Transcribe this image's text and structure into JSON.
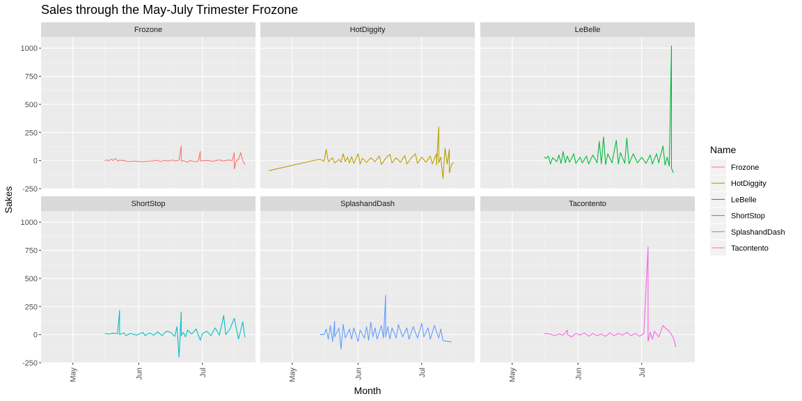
{
  "chart_data": {
    "type": "line",
    "title": "Sales through the May-July Trimester Frozone",
    "xlabel": "Month",
    "ylabel": "Sakes",
    "facet_layout": "2 rows x 3 columns",
    "xlim": [
      "2021-04-16",
      "2021-07-26"
    ],
    "ylim": [
      -250,
      1100
    ],
    "x_ticks": [
      {
        "date": "2021-05-01",
        "label": "May"
      },
      {
        "date": "2021-06-01",
        "label": "Jun"
      },
      {
        "date": "2021-07-01",
        "label": "Jul"
      }
    ],
    "y_ticks": [
      -250,
      0,
      250,
      500,
      750,
      1000
    ],
    "tick_label_orientation_x": "rotated vertical",
    "grid": true,
    "legend": {
      "title": "Name",
      "position": "right"
    },
    "series": [
      {
        "name": "Frozone",
        "color": "#F8766D",
        "points": [
          [
            "2021-05-16",
            0
          ],
          [
            "2021-05-17",
            5
          ],
          [
            "2021-05-18",
            -3
          ],
          [
            "2021-05-19",
            12
          ],
          [
            "2021-05-20",
            0
          ],
          [
            "2021-05-21",
            18
          ],
          [
            "2021-05-22",
            -5
          ],
          [
            "2021-05-23",
            3
          ],
          [
            "2021-05-25",
            0
          ],
          [
            "2021-05-27",
            -8
          ],
          [
            "2021-05-30",
            -4
          ],
          [
            "2021-06-02",
            -10
          ],
          [
            "2021-06-05",
            -6
          ],
          [
            "2021-06-08",
            -2
          ],
          [
            "2021-06-10",
            4
          ],
          [
            "2021-06-11",
            -9
          ],
          [
            "2021-06-13",
            2
          ],
          [
            "2021-06-15",
            -4
          ],
          [
            "2021-06-17",
            6
          ],
          [
            "2021-06-18",
            -3
          ],
          [
            "2021-06-20",
            3
          ],
          [
            "2021-06-21",
            130
          ],
          [
            "2021-06-21",
            -5
          ],
          [
            "2021-06-22",
            0
          ],
          [
            "2021-06-24",
            -15
          ],
          [
            "2021-06-25",
            2
          ],
          [
            "2021-06-27",
            -8
          ],
          [
            "2021-06-29",
            -6
          ],
          [
            "2021-06-30",
            80
          ],
          [
            "2021-06-30",
            -3
          ],
          [
            "2021-07-03",
            2
          ],
          [
            "2021-07-06",
            -6
          ],
          [
            "2021-07-09",
            6
          ],
          [
            "2021-07-11",
            -4
          ],
          [
            "2021-07-13",
            5
          ],
          [
            "2021-07-15",
            0
          ],
          [
            "2021-07-16",
            70
          ],
          [
            "2021-07-16",
            -75
          ],
          [
            "2021-07-17",
            2
          ],
          [
            "2021-07-18",
            8
          ],
          [
            "2021-07-19",
            70
          ],
          [
            "2021-07-20",
            0
          ],
          [
            "2021-07-21",
            -35
          ]
        ]
      },
      {
        "name": "HotDiggity",
        "color": "#B79F00",
        "points": [
          [
            "2021-04-20",
            -90
          ],
          [
            "2021-05-11",
            0
          ],
          [
            "2021-05-14",
            10
          ],
          [
            "2021-05-16",
            -5
          ],
          [
            "2021-05-17",
            100
          ],
          [
            "2021-05-18",
            -10
          ],
          [
            "2021-05-19",
            5
          ],
          [
            "2021-05-20",
            25
          ],
          [
            "2021-05-21",
            -20
          ],
          [
            "2021-05-23",
            10
          ],
          [
            "2021-05-24",
            -15
          ],
          [
            "2021-05-25",
            60
          ],
          [
            "2021-05-26",
            -10
          ],
          [
            "2021-05-27",
            30
          ],
          [
            "2021-05-28",
            -20
          ],
          [
            "2021-05-29",
            35
          ],
          [
            "2021-05-30",
            -25
          ],
          [
            "2021-05-31",
            15
          ],
          [
            "2021-06-01",
            60
          ],
          [
            "2021-06-02",
            -30
          ],
          [
            "2021-06-03",
            20
          ],
          [
            "2021-06-05",
            -15
          ],
          [
            "2021-06-07",
            25
          ],
          [
            "2021-06-09",
            -10
          ],
          [
            "2021-06-11",
            40
          ],
          [
            "2021-06-12",
            -35
          ],
          [
            "2021-06-14",
            20
          ],
          [
            "2021-06-16",
            55
          ],
          [
            "2021-06-17",
            -20
          ],
          [
            "2021-06-19",
            25
          ],
          [
            "2021-06-21",
            -15
          ],
          [
            "2021-06-23",
            45
          ],
          [
            "2021-06-24",
            -30
          ],
          [
            "2021-06-26",
            20
          ],
          [
            "2021-06-28",
            60
          ],
          [
            "2021-06-29",
            -25
          ],
          [
            "2021-07-01",
            30
          ],
          [
            "2021-07-03",
            -15
          ],
          [
            "2021-07-05",
            40
          ],
          [
            "2021-07-06",
            -30
          ],
          [
            "2021-07-07",
            20
          ],
          [
            "2021-07-08",
            60
          ],
          [
            "2021-07-08",
            -40
          ],
          [
            "2021-07-09",
            300
          ],
          [
            "2021-07-09",
            -20
          ],
          [
            "2021-07-10",
            30
          ],
          [
            "2021-07-11",
            -160
          ],
          [
            "2021-07-12",
            110
          ],
          [
            "2021-07-13",
            -30
          ],
          [
            "2021-07-14",
            100
          ],
          [
            "2021-07-14",
            -110
          ],
          [
            "2021-07-15",
            -40
          ],
          [
            "2021-07-16",
            -15
          ]
        ]
      },
      {
        "name": "LeBelle",
        "color": "#00BA38",
        "points": [
          [
            "2021-05-16",
            30
          ],
          [
            "2021-05-17",
            20
          ],
          [
            "2021-05-18",
            40
          ],
          [
            "2021-05-19",
            -30
          ],
          [
            "2021-05-20",
            25
          ],
          [
            "2021-05-22",
            -10
          ],
          [
            "2021-05-23",
            50
          ],
          [
            "2021-05-24",
            -25
          ],
          [
            "2021-05-25",
            80
          ],
          [
            "2021-05-26",
            -20
          ],
          [
            "2021-05-27",
            40
          ],
          [
            "2021-05-28",
            -15
          ],
          [
            "2021-05-30",
            60
          ],
          [
            "2021-05-31",
            -25
          ],
          [
            "2021-06-02",
            30
          ],
          [
            "2021-06-03",
            -20
          ],
          [
            "2021-06-05",
            40
          ],
          [
            "2021-06-06",
            -30
          ],
          [
            "2021-06-08",
            50
          ],
          [
            "2021-06-10",
            -20
          ],
          [
            "2021-06-11",
            170
          ],
          [
            "2021-06-12",
            -30
          ],
          [
            "2021-06-13",
            210
          ],
          [
            "2021-06-14",
            -35
          ],
          [
            "2021-06-15",
            60
          ],
          [
            "2021-06-17",
            -20
          ],
          [
            "2021-06-19",
            180
          ],
          [
            "2021-06-20",
            -30
          ],
          [
            "2021-06-21",
            70
          ],
          [
            "2021-06-23",
            -25
          ],
          [
            "2021-06-24",
            200
          ],
          [
            "2021-06-25",
            -30
          ],
          [
            "2021-06-27",
            60
          ],
          [
            "2021-06-29",
            -20
          ],
          [
            "2021-07-01",
            30
          ],
          [
            "2021-07-03",
            -25
          ],
          [
            "2021-07-05",
            50
          ],
          [
            "2021-07-06",
            -30
          ],
          [
            "2021-07-08",
            60
          ],
          [
            "2021-07-09",
            -20
          ],
          [
            "2021-07-11",
            130
          ],
          [
            "2021-07-12",
            -40
          ],
          [
            "2021-07-13",
            30
          ],
          [
            "2021-07-14",
            -50
          ],
          [
            "2021-07-15",
            1020
          ],
          [
            "2021-07-15",
            -70
          ],
          [
            "2021-07-16",
            -110
          ]
        ]
      },
      {
        "name": "ShortStop",
        "color": "#00BFC4",
        "points": [
          [
            "2021-05-16",
            10
          ],
          [
            "2021-05-18",
            5
          ],
          [
            "2021-05-20",
            12
          ],
          [
            "2021-05-22",
            8
          ],
          [
            "2021-05-23",
            215
          ],
          [
            "2021-05-23",
            0
          ],
          [
            "2021-05-25",
            15
          ],
          [
            "2021-05-26",
            -10
          ],
          [
            "2021-05-28",
            10
          ],
          [
            "2021-05-31",
            -5
          ],
          [
            "2021-06-03",
            20
          ],
          [
            "2021-06-04",
            -10
          ],
          [
            "2021-06-06",
            15
          ],
          [
            "2021-06-08",
            -5
          ],
          [
            "2021-06-10",
            25
          ],
          [
            "2021-06-12",
            -10
          ],
          [
            "2021-06-14",
            30
          ],
          [
            "2021-06-16",
            20
          ],
          [
            "2021-06-18",
            -15
          ],
          [
            "2021-06-19",
            70
          ],
          [
            "2021-06-20",
            -200
          ],
          [
            "2021-06-21",
            200
          ],
          [
            "2021-06-21",
            -10
          ],
          [
            "2021-06-22",
            20
          ],
          [
            "2021-06-23",
            -20
          ],
          [
            "2021-06-24",
            40
          ],
          [
            "2021-06-26",
            5
          ],
          [
            "2021-06-28",
            50
          ],
          [
            "2021-06-30",
            -50
          ],
          [
            "2021-07-01",
            10
          ],
          [
            "2021-07-03",
            30
          ],
          [
            "2021-07-05",
            -10
          ],
          [
            "2021-07-07",
            60
          ],
          [
            "2021-07-09",
            -5
          ],
          [
            "2021-07-11",
            170
          ],
          [
            "2021-07-12",
            0
          ],
          [
            "2021-07-14",
            50
          ],
          [
            "2021-07-16",
            145
          ],
          [
            "2021-07-18",
            -40
          ],
          [
            "2021-07-20",
            115
          ],
          [
            "2021-07-21",
            -25
          ]
        ]
      },
      {
        "name": "SplashandDash",
        "color": "#619CFF",
        "points": [
          [
            "2021-05-14",
            0
          ],
          [
            "2021-05-16",
            0
          ],
          [
            "2021-05-17",
            50
          ],
          [
            "2021-05-18",
            -40
          ],
          [
            "2021-05-19",
            80
          ],
          [
            "2021-05-20",
            -60
          ],
          [
            "2021-05-21",
            120
          ],
          [
            "2021-05-21",
            -20
          ],
          [
            "2021-05-23",
            60
          ],
          [
            "2021-05-24",
            -130
          ],
          [
            "2021-05-25",
            90
          ],
          [
            "2021-05-26",
            -30
          ],
          [
            "2021-05-28",
            50
          ],
          [
            "2021-05-29",
            -40
          ],
          [
            "2021-05-30",
            60
          ],
          [
            "2021-06-01",
            -60
          ],
          [
            "2021-06-02",
            40
          ],
          [
            "2021-06-04",
            -30
          ],
          [
            "2021-06-05",
            70
          ],
          [
            "2021-06-06",
            -50
          ],
          [
            "2021-06-07",
            110
          ],
          [
            "2021-06-08",
            -20
          ],
          [
            "2021-06-09",
            60
          ],
          [
            "2021-06-10",
            -40
          ],
          [
            "2021-06-12",
            80
          ],
          [
            "2021-06-13",
            -30
          ],
          [
            "2021-06-14",
            350
          ],
          [
            "2021-06-14",
            -20
          ],
          [
            "2021-06-15",
            70
          ],
          [
            "2021-06-16",
            -40
          ],
          [
            "2021-06-17",
            60
          ],
          [
            "2021-06-19",
            -30
          ],
          [
            "2021-06-20",
            90
          ],
          [
            "2021-06-22",
            -20
          ],
          [
            "2021-06-24",
            60
          ],
          [
            "2021-06-25",
            -40
          ],
          [
            "2021-06-27",
            70
          ],
          [
            "2021-06-29",
            -30
          ],
          [
            "2021-07-01",
            100
          ],
          [
            "2021-07-02",
            -20
          ],
          [
            "2021-07-04",
            60
          ],
          [
            "2021-07-05",
            -40
          ],
          [
            "2021-07-07",
            80
          ],
          [
            "2021-07-09",
            -30
          ],
          [
            "2021-07-10",
            50
          ],
          [
            "2021-07-11",
            -55
          ],
          [
            "2021-07-15",
            -65
          ]
        ]
      },
      {
        "name": "Tacontento",
        "color": "#F564E3",
        "points": [
          [
            "2021-05-16",
            10
          ],
          [
            "2021-05-19",
            5
          ],
          [
            "2021-05-21",
            -10
          ],
          [
            "2021-05-23",
            5
          ],
          [
            "2021-05-25",
            -5
          ],
          [
            "2021-05-27",
            40
          ],
          [
            "2021-05-27",
            0
          ],
          [
            "2021-05-29",
            -20
          ],
          [
            "2021-05-31",
            10
          ],
          [
            "2021-06-02",
            -5
          ],
          [
            "2021-06-04",
            15
          ],
          [
            "2021-06-06",
            -15
          ],
          [
            "2021-06-08",
            10
          ],
          [
            "2021-06-10",
            -10
          ],
          [
            "2021-06-12",
            5
          ],
          [
            "2021-06-14",
            -15
          ],
          [
            "2021-06-16",
            15
          ],
          [
            "2021-06-18",
            -10
          ],
          [
            "2021-06-20",
            10
          ],
          [
            "2021-06-22",
            -5
          ],
          [
            "2021-06-24",
            20
          ],
          [
            "2021-06-26",
            -10
          ],
          [
            "2021-06-28",
            10
          ],
          [
            "2021-06-30",
            -15
          ],
          [
            "2021-07-02",
            10
          ],
          [
            "2021-07-04",
            780
          ],
          [
            "2021-07-04",
            -60
          ],
          [
            "2021-07-05",
            20
          ],
          [
            "2021-07-06",
            -40
          ],
          [
            "2021-07-07",
            30
          ],
          [
            "2021-07-09",
            -20
          ],
          [
            "2021-07-11",
            80
          ],
          [
            "2021-07-12",
            60
          ],
          [
            "2021-07-14",
            30
          ],
          [
            "2021-07-16",
            -30
          ],
          [
            "2021-07-17",
            -110
          ]
        ]
      }
    ]
  }
}
